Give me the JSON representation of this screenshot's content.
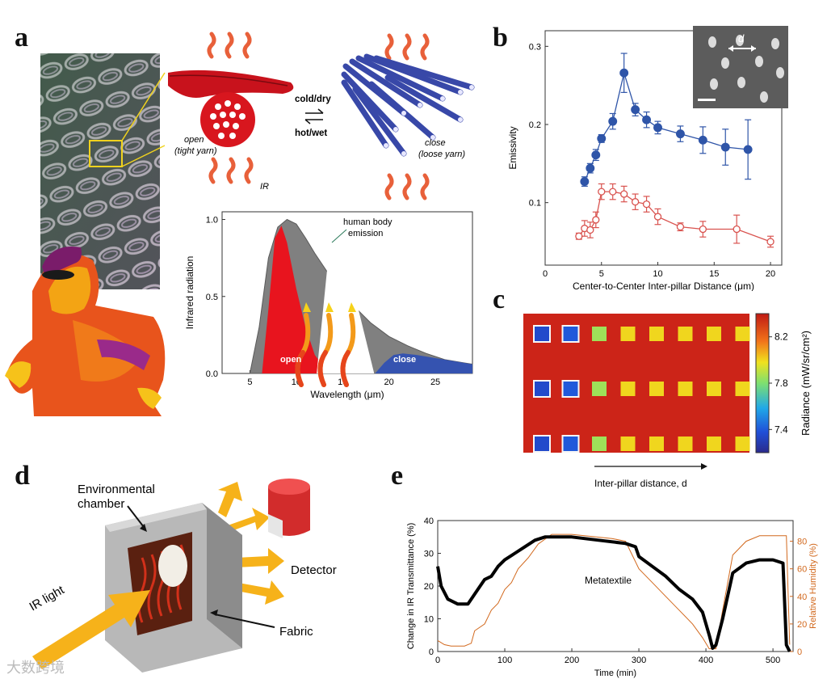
{
  "panels": {
    "a": {
      "letter": "a",
      "cold_dry": "cold/dry",
      "hot_wet": "hot/wet",
      "open_label": "open",
      "open_sub": "(tight yarn)",
      "close_label": "close",
      "close_sub": "(loose yarn)",
      "ir_label": "IR",
      "human_body": "human body",
      "emission": "emission",
      "open_band": "open",
      "close_band": "close"
    },
    "b": {
      "letter": "b",
      "scale_label": "d"
    },
    "c": {
      "letter": "c",
      "arrow_label": "Inter-pillar distance, d"
    },
    "d": {
      "letter": "d",
      "chamber_line1": "Environmental",
      "chamber_line2": "chamber",
      "detector": "Detector",
      "ir_light": "IR light",
      "fabric": "Fabric"
    },
    "e": {
      "letter": "e",
      "annotation": "Metatextile"
    }
  },
  "watermark": "大数跨境",
  "colors": {
    "blue_series": "#2f55a8",
    "red_series": "#d9534f",
    "open_red": "#e8141e",
    "close_blue": "#3553b0",
    "body_gray": "#808080",
    "humidity_orange": "#d2691e"
  },
  "chart_data": [
    {
      "id": "a-spectrum",
      "type": "area",
      "xlabel": "Wavelength (μm)",
      "ylabel": "Infrared radiation",
      "xlim": [
        2,
        29
      ],
      "ylim": [
        0,
        1.05
      ],
      "x_ticks": [
        5,
        10,
        15,
        20,
        25
      ],
      "y_ticks": [
        0.0,
        0.5,
        1.0
      ],
      "y_tick_labels": [
        "0.0",
        "0.5",
        "1.0"
      ],
      "series": [
        {
          "name": "human body emission",
          "x": [
            5,
            6,
            7,
            8,
            9,
            10,
            11,
            12,
            14,
            16,
            18,
            20,
            22,
            24,
            26,
            28,
            29
          ],
          "y": [
            0.0,
            0.3,
            0.75,
            0.95,
            1.0,
            0.97,
            0.88,
            0.78,
            0.6,
            0.45,
            0.33,
            0.24,
            0.18,
            0.13,
            0.09,
            0.07,
            0.06
          ]
        },
        {
          "name": "open",
          "x": [
            6.3,
            7,
            7.7,
            8.4,
            9,
            10,
            11,
            12,
            13.5
          ],
          "y": [
            0.0,
            0.42,
            0.88,
            0.96,
            0.85,
            0.55,
            0.3,
            0.12,
            0.0
          ]
        },
        {
          "name": "close",
          "x": [
            18.5,
            19.5,
            20.5,
            21.5,
            23,
            25,
            27,
            29
          ],
          "y": [
            0.0,
            0.07,
            0.12,
            0.13,
            0.12,
            0.1,
            0.08,
            0.06
          ]
        }
      ]
    },
    {
      "id": "b-emissivity",
      "type": "scatter",
      "xlabel": "Center-to-Center Inter-pillar Distance (μm)",
      "ylabel": "Emissivity",
      "xlim": [
        0,
        21
      ],
      "ylim": [
        0.02,
        0.32
      ],
      "x_ticks": [
        0,
        5,
        10,
        15,
        20
      ],
      "y_ticks": [
        0.1,
        0.2,
        0.3
      ],
      "y_tick_labels": [
        "0.1",
        "0.2",
        "0.3"
      ],
      "series": [
        {
          "filled": true,
          "x": [
            3.5,
            4,
            4.5,
            5,
            6,
            7,
            8,
            9,
            10,
            12,
            14,
            16,
            18
          ],
          "y": [
            0.127,
            0.144,
            0.161,
            0.182,
            0.204,
            0.266,
            0.219,
            0.206,
            0.196,
            0.188,
            0.18,
            0.171,
            0.168
          ],
          "err": [
            0.006,
            0.006,
            0.007,
            0.005,
            0.01,
            0.025,
            0.008,
            0.01,
            0.008,
            0.01,
            0.017,
            0.023,
            0.038
          ]
        },
        {
          "filled": false,
          "x": [
            3,
            3.5,
            4,
            4.5,
            5,
            6,
            7,
            8,
            9,
            10,
            12,
            14,
            17,
            20
          ],
          "y": [
            0.057,
            0.067,
            0.065,
            0.078,
            0.114,
            0.114,
            0.111,
            0.101,
            0.098,
            0.082,
            0.069,
            0.066,
            0.066,
            0.05
          ],
          "err": [
            0.004,
            0.01,
            0.01,
            0.01,
            0.01,
            0.01,
            0.01,
            0.01,
            0.01,
            0.01,
            0.005,
            0.01,
            0.018,
            0.007
          ]
        }
      ]
    },
    {
      "id": "c-radiance",
      "type": "heatmap",
      "colorbar_label": "Radiance (mW/sr/cm²)",
      "colorbar_range": [
        7.2,
        8.4
      ],
      "colorbar_ticks": [
        7.4,
        7.8,
        8.2
      ],
      "colorbar_tick_labels": [
        "7.4",
        "7.8",
        "8.2"
      ],
      "background_value": 8.25,
      "rows": 3,
      "columns": 8,
      "pillar_values": [
        7.35,
        7.4,
        7.85,
        8.0,
        8.0,
        8.0,
        8.0,
        8.0
      ]
    },
    {
      "id": "e-transmittance",
      "type": "line",
      "xlabel": "Time (min)",
      "ylabel": "Change in IR Transmittance (%)",
      "y2label": "Relative Humidity (%)",
      "xlim": [
        0,
        530
      ],
      "ylim": [
        0,
        40
      ],
      "y2lim": [
        0,
        95
      ],
      "x_ticks": [
        0,
        100,
        200,
        300,
        400,
        500
      ],
      "y_ticks": [
        0,
        10,
        20,
        30,
        40
      ],
      "y2_ticks": [
        0,
        20,
        40,
        60,
        80
      ],
      "series": [
        {
          "name": "IR Transmittance",
          "axis": "left",
          "x": [
            0,
            5,
            15,
            30,
            45,
            50,
            60,
            70,
            80,
            90,
            100,
            115,
            130,
            145,
            160,
            200,
            240,
            280,
            295,
            300,
            320,
            340,
            360,
            380,
            395,
            405,
            410,
            415,
            425,
            440,
            460,
            480,
            500,
            515,
            520,
            525
          ],
          "y": [
            26,
            20,
            16,
            14.5,
            14.5,
            16,
            19,
            22,
            23,
            26,
            28,
            30,
            32,
            34,
            35,
            35,
            34,
            33,
            32,
            29,
            26,
            23,
            19,
            16,
            12,
            5,
            1,
            2,
            10,
            24,
            27,
            28,
            28,
            27,
            2,
            0
          ]
        },
        {
          "name": "Relative Humidity",
          "axis": "right",
          "x": [
            0,
            10,
            20,
            40,
            50,
            55,
            70,
            80,
            90,
            100,
            110,
            120,
            135,
            150,
            170,
            200,
            260,
            280,
            290,
            300,
            320,
            340,
            360,
            380,
            395,
            405,
            415,
            425,
            440,
            460,
            480,
            500,
            520,
            525
          ],
          "y": [
            8,
            5,
            4,
            4,
            6,
            15,
            20,
            30,
            35,
            45,
            50,
            60,
            68,
            78,
            85,
            85,
            82,
            80,
            70,
            60,
            50,
            40,
            30,
            20,
            10,
            2,
            2,
            30,
            70,
            80,
            84,
            84,
            84,
            5
          ]
        }
      ]
    }
  ]
}
